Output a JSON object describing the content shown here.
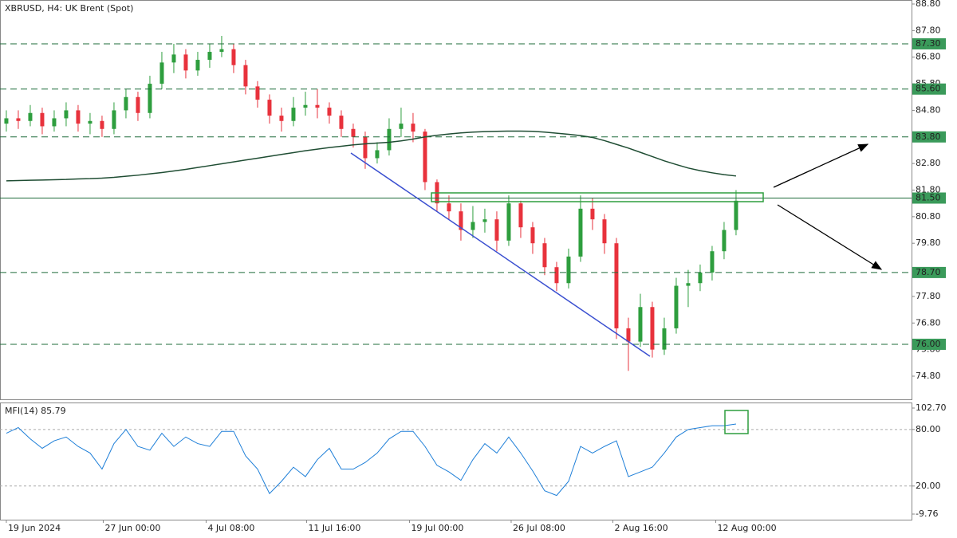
{
  "chart_data": [
    {
      "type": "candlestick",
      "title": "XBRUSD, H4:  UK Brent (Spot)",
      "up_color": "#2e9e3e",
      "down_color": "#e8323c",
      "open": [
        84.3,
        84.5,
        84.4,
        84.7,
        84.2,
        84.5,
        84.8,
        84.3,
        84.4,
        84.1,
        84.8,
        85.3,
        84.7,
        85.8,
        86.6,
        86.9,
        86.3,
        86.7,
        87.0,
        87.1,
        86.5,
        85.7,
        85.2,
        84.6,
        84.4,
        84.9,
        85.0,
        84.9,
        84.6,
        84.1,
        83.8,
        83.0,
        83.3,
        84.1,
        84.3,
        84.0,
        82.1,
        81.3,
        81.0,
        80.3,
        80.6,
        80.7,
        79.9,
        81.3,
        80.4,
        79.8,
        78.9,
        78.3,
        79.3,
        81.1,
        80.7,
        79.8,
        76.6,
        76.1,
        77.4,
        75.8,
        76.6,
        78.2,
        78.3,
        78.7,
        79.5,
        80.3
      ],
      "high": [
        84.8,
        84.8,
        85.0,
        84.9,
        84.8,
        85.1,
        85.0,
        84.7,
        84.6,
        85.1,
        85.6,
        85.5,
        86.1,
        87.0,
        87.3,
        87.1,
        87.0,
        87.3,
        87.6,
        87.3,
        86.7,
        85.9,
        85.4,
        84.9,
        85.3,
        85.5,
        85.6,
        85.1,
        84.8,
        84.3,
        84.0,
        83.6,
        84.5,
        84.9,
        84.7,
        84.1,
        82.2,
        81.6,
        81.3,
        81.2,
        81.1,
        81.0,
        81.6,
        81.4,
        80.6,
        80.0,
        79.1,
        79.6,
        81.6,
        81.5,
        80.9,
        80.0,
        77.0,
        77.9,
        77.6,
        77.0,
        78.5,
        78.8,
        79.0,
        79.7,
        80.6,
        81.8
      ],
      "low": [
        84.0,
        84.1,
        84.2,
        83.9,
        84.0,
        84.2,
        84.0,
        83.9,
        83.8,
        83.9,
        84.5,
        84.4,
        84.5,
        85.6,
        86.2,
        86.0,
        86.1,
        86.4,
        86.8,
        86.2,
        85.4,
        84.9,
        84.3,
        84.0,
        84.2,
        84.6,
        84.5,
        84.3,
        83.8,
        83.4,
        82.6,
        82.8,
        83.1,
        83.8,
        83.6,
        81.8,
        81.0,
        80.7,
        79.9,
        80.0,
        80.2,
        79.5,
        79.7,
        80.0,
        79.4,
        78.6,
        78.0,
        78.1,
        79.1,
        80.3,
        79.4,
        76.2,
        75.0,
        75.9,
        75.5,
        75.6,
        76.4,
        77.4,
        78.0,
        78.4,
        79.2,
        80.1
      ],
      "close": [
        84.5,
        84.4,
        84.7,
        84.2,
        84.5,
        84.8,
        84.3,
        84.4,
        84.1,
        84.8,
        85.3,
        84.7,
        85.8,
        86.6,
        86.9,
        86.3,
        86.7,
        87.0,
        87.1,
        86.5,
        85.7,
        85.2,
        84.6,
        84.4,
        84.9,
        85.0,
        84.9,
        84.6,
        84.1,
        83.8,
        83.0,
        83.3,
        84.1,
        84.3,
        84.0,
        82.1,
        81.3,
        81.0,
        80.3,
        80.6,
        80.7,
        79.9,
        81.3,
        80.4,
        79.8,
        78.9,
        78.3,
        79.3,
        81.1,
        80.7,
        79.8,
        76.6,
        76.1,
        77.4,
        75.8,
        76.6,
        78.2,
        78.3,
        78.7,
        79.5,
        80.3,
        81.4
      ],
      "ma": {
        "color": "#1f4d33",
        "values": [
          82.15,
          82.16,
          82.17,
          82.18,
          82.19,
          82.2,
          82.22,
          82.23,
          82.25,
          82.28,
          82.32,
          82.36,
          82.41,
          82.46,
          82.52,
          82.58,
          82.65,
          82.72,
          82.79,
          82.86,
          82.93,
          83.0,
          83.07,
          83.14,
          83.21,
          83.28,
          83.34,
          83.4,
          83.45,
          83.5,
          83.54,
          83.57,
          83.6,
          83.65,
          83.72,
          83.8,
          83.86,
          83.91,
          83.95,
          83.98,
          84.0,
          84.01,
          84.02,
          84.02,
          84.01,
          83.98,
          83.94,
          83.9,
          83.85,
          83.78,
          83.66,
          83.52,
          83.38,
          83.22,
          83.06,
          82.9,
          82.76,
          82.63,
          82.53,
          82.45,
          82.38,
          82.33
        ]
      },
      "xlim": [
        -0.53,
        75.67
      ],
      "ylim": [
        73.9,
        88.95
      ],
      "yticks": [
        {
          "value": 88.8,
          "label": "88.80"
        },
        {
          "value": 87.8,
          "label": "87.80"
        },
        {
          "value": 86.8,
          "label": "86.80"
        },
        {
          "value": 85.8,
          "label": "85.80"
        },
        {
          "value": 84.8,
          "label": "84.80"
        },
        {
          "value": 82.8,
          "label": "82.80"
        },
        {
          "value": 81.8,
          "label": "81.80"
        },
        {
          "value": 80.8,
          "label": "80.80"
        },
        {
          "value": 79.8,
          "label": "79.80"
        },
        {
          "value": 77.8,
          "label": "77.80"
        },
        {
          "value": 76.8,
          "label": "76.80"
        },
        {
          "value": 75.8,
          "label": "75.80"
        },
        {
          "value": 74.8,
          "label": "74.80"
        }
      ],
      "levels": [
        {
          "value": 87.3,
          "label": "87.30"
        },
        {
          "value": 85.6,
          "label": "85.60"
        },
        {
          "value": 83.8,
          "label": "83.80"
        },
        {
          "value": 81.5,
          "label": "81.50"
        },
        {
          "value": 78.7,
          "label": "78.70"
        },
        {
          "value": 76.0,
          "label": "76.00"
        }
      ],
      "level_color": "#1e6b3a"
    },
    {
      "type": "line",
      "title": "MFI(14) 85.79",
      "color": "#1e7fd8",
      "values": [
        76,
        82,
        70,
        60,
        68,
        72,
        62,
        55,
        38,
        65,
        80,
        62,
        58,
        76,
        62,
        72,
        65,
        62,
        78,
        78,
        52,
        38,
        12,
        25,
        40,
        30,
        48,
        60,
        38,
        38,
        45,
        55,
        70,
        78,
        78,
        62,
        42,
        35,
        26,
        48,
        65,
        55,
        72,
        55,
        36,
        15,
        10,
        25,
        62,
        55,
        62,
        68,
        30,
        35,
        40,
        55,
        72,
        80,
        82,
        84,
        84,
        85.79
      ],
      "xlim": [
        -0.53,
        75.67
      ],
      "ylim": [
        -15.68,
        108.6
      ],
      "yticks": [
        {
          "value": 102.7,
          "label": "102.70"
        },
        {
          "value": 80,
          "label": "80.00"
        },
        {
          "value": 20,
          "label": "20.00"
        },
        {
          "value": -9.76,
          "label": "-9.76"
        }
      ],
      "levels": [
        80,
        20
      ],
      "xticks": [
        {
          "value": 0,
          "label": "19 Jun 2024"
        },
        {
          "value": 8.1,
          "label": "27 Jun 00:00"
        },
        {
          "value": 16.7,
          "label": "4 Jul 08:00"
        },
        {
          "value": 25.1,
          "label": "11 Jul 16:00"
        },
        {
          "value": 33.7,
          "label": "19 Jul 00:00"
        },
        {
          "value": 42.2,
          "label": "26 Jul 08:00"
        },
        {
          "value": 50.7,
          "label": "2 Aug 16:00"
        },
        {
          "value": 59.3,
          "label": "12 Aug 00:00"
        }
      ]
    }
  ]
}
